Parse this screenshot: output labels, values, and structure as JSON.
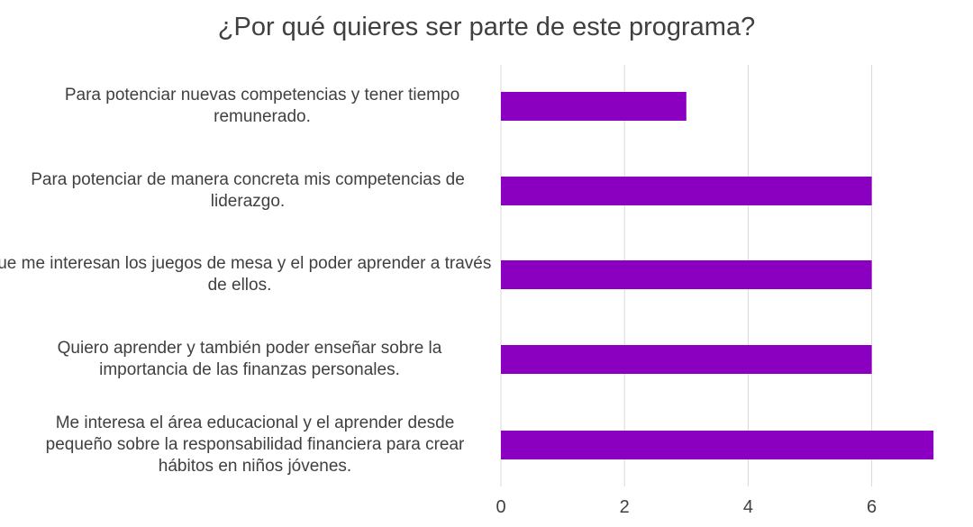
{
  "chart_data": {
    "type": "bar",
    "orientation": "horizontal",
    "title": "¿Por qué quieres ser parte de este programa?",
    "xlabel": "",
    "ylabel": "",
    "xlim": [
      0,
      7
    ],
    "x_ticks": [
      "0",
      "2",
      "4",
      "6"
    ],
    "grid": true,
    "legend": "none",
    "bar_color": "#8B00C0",
    "categories": [
      "Para potenciar nuevas competencias y tener tiempo remunerado.",
      "Para potenciar de manera concreta mis competencias de liderazgo.",
      "que me interesan los juegos de mesa y el poder aprender a través de ellos.",
      "Quiero aprender  y también poder enseñar sobre la importancia de las finanzas personales.",
      "Me interesa el área educacional y el aprender desde pequeño sobre la responsabilidad financiera para crear hábitos en niños jóvenes."
    ],
    "values": [
      3,
      6,
      6,
      6,
      7
    ]
  }
}
